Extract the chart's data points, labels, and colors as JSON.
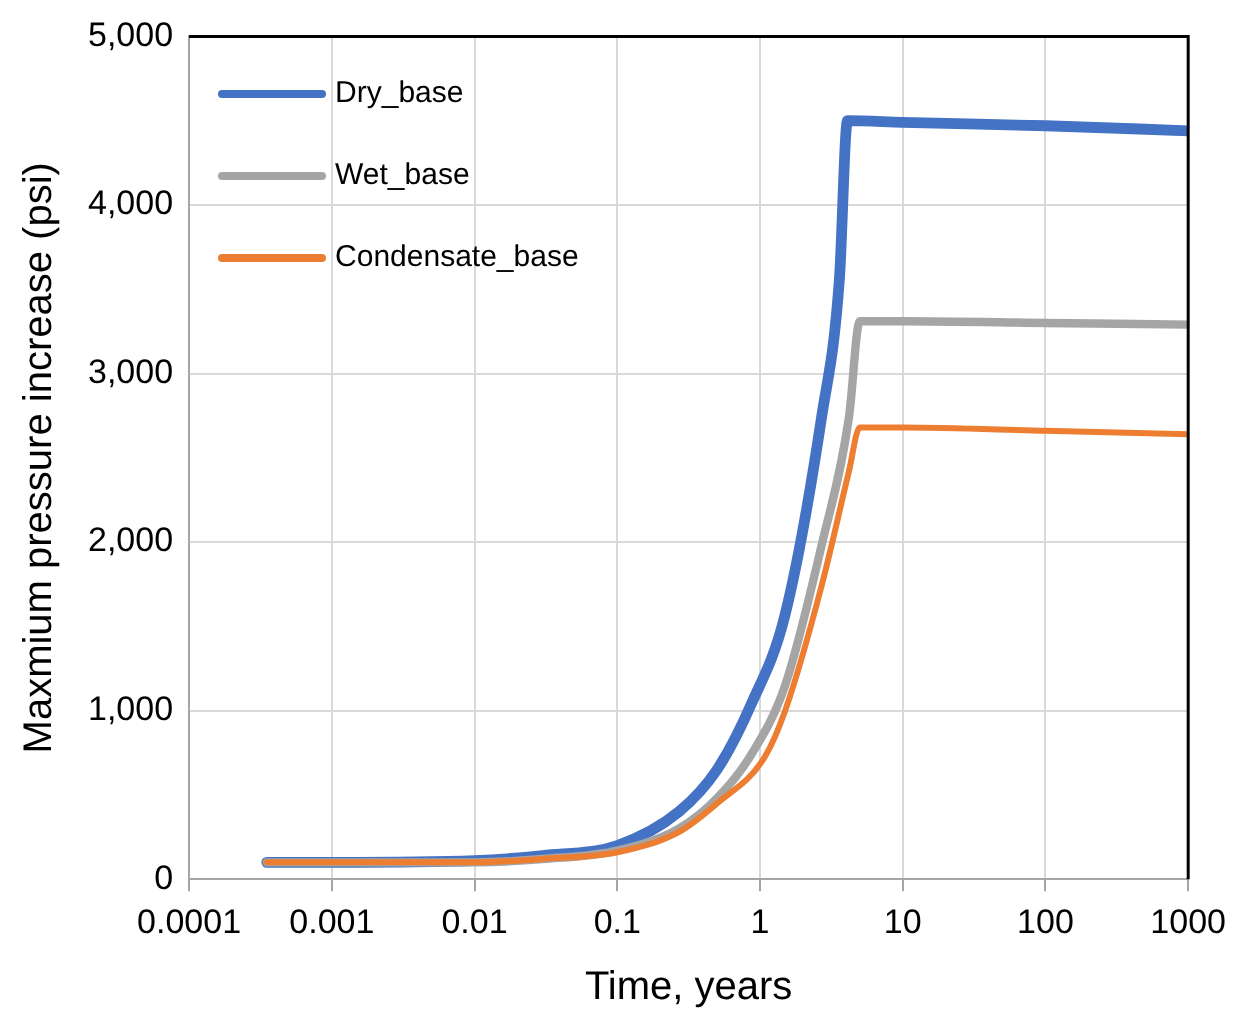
{
  "chart_data": {
    "type": "line",
    "xlabel": "Time, years",
    "ylabel": "Maxmium pressure increase (psi)",
    "log": "x",
    "grid": true,
    "legend": "top left",
    "marker": "none",
    "line_style": "solid",
    "xlim": [
      0.0001,
      1000
    ],
    "xticks": [
      0.0001,
      0.001,
      0.01,
      0.1,
      1,
      10,
      100,
      1000
    ],
    "ylim": [
      0,
      5000
    ],
    "yticks": [
      0,
      {
        "value": 1000,
        "label": "1,000"
      },
      {
        "value": 2000,
        "label": "2,000"
      },
      {
        "value": 3000,
        "label": "3,000"
      },
      {
        "value": 4000,
        "label": "4,000"
      },
      {
        "value": 5000,
        "label": "5,000"
      }
    ],
    "series": [
      {
        "name": "Dry_base",
        "color": "#4472c4",
        "x": [
          0.00035,
          0.001,
          0.01,
          0.03,
          0.1,
          0.27,
          0.5,
          0.87,
          1.5,
          2.7,
          3.6,
          4.1,
          10,
          100,
          1000
        ],
        "values": [
          100,
          100,
          110,
          140,
          200,
          400,
          650,
          1040,
          1570,
          2740,
          3560,
          4500,
          4490,
          4470,
          4440
        ]
      },
      {
        "name": "Wet_base",
        "color": "#a5a5a5",
        "x": [
          0.00035,
          0.001,
          0.01,
          0.03,
          0.1,
          0.27,
          0.5,
          0.87,
          1.5,
          2.7,
          4.2,
          5,
          10,
          100,
          1000
        ],
        "values": [
          100,
          100,
          100,
          120,
          170,
          300,
          480,
          740,
          1150,
          1980,
          2740,
          3310,
          3310,
          3300,
          3290
        ]
      },
      {
        "name": "Condensate_base",
        "color": "#ed7d31",
        "x": [
          0.00035,
          0.001,
          0.01,
          0.03,
          0.1,
          0.27,
          0.5,
          1.07,
          1.5,
          2.7,
          4.2,
          5,
          10,
          100,
          1000
        ],
        "values": [
          100,
          100,
          100,
          120,
          160,
          280,
          450,
          720,
          1000,
          1740,
          2420,
          2680,
          2680,
          2660,
          2640
        ]
      }
    ]
  }
}
